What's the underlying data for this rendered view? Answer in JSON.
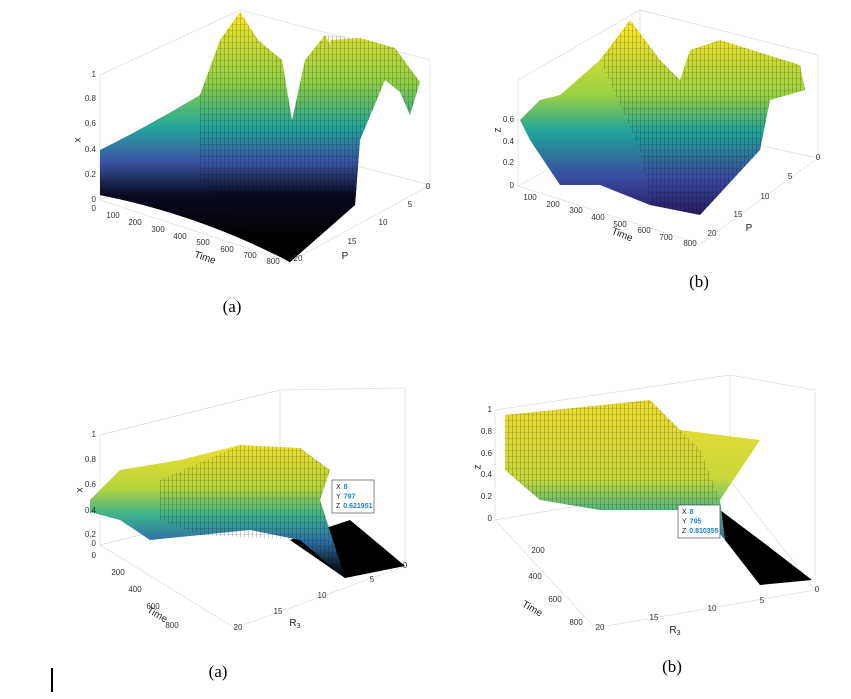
{
  "panels": [
    {
      "z_label": "x",
      "z_ticks": [
        "1",
        "0.8",
        "0.6",
        "0.4",
        "0.2",
        "0",
        "0"
      ],
      "x_label": "Time",
      "x_ticks": [
        "100",
        "200",
        "300",
        "400",
        "500",
        "600",
        "700",
        "800"
      ],
      "y_label": "P",
      "y_ticks": [
        "0",
        "5",
        "10",
        "15",
        "20"
      ],
      "caption": "(a)"
    },
    {
      "z_label": "z",
      "z_ticks": [
        "0.6",
        "0.4",
        "0.2",
        "0"
      ],
      "x_label": "Time",
      "x_ticks": [
        "100",
        "200",
        "300",
        "400",
        "500",
        "600",
        "700",
        "800"
      ],
      "y_label": "P",
      "y_ticks": [
        "0",
        "5",
        "10",
        "15",
        "20"
      ],
      "caption": "(b)"
    },
    {
      "z_label": "x",
      "z_ticks": [
        "1",
        "0.8",
        "0.6",
        "0.4",
        "0.2",
        "0",
        "0"
      ],
      "x_label": "Time",
      "x_ticks": [
        "200",
        "400",
        "600",
        "800"
      ],
      "y_label": "R",
      "y_label_sub": "3",
      "y_ticks": [
        "0",
        "5",
        "10",
        "15",
        "20"
      ],
      "datatip": [
        {
          "key": "X",
          "value": "8"
        },
        {
          "key": "Y",
          "value": "797"
        },
        {
          "key": "Z",
          "value": "0.621951"
        }
      ],
      "caption": "(a)"
    },
    {
      "z_label": "z",
      "z_ticks": [
        "1",
        "0.8",
        "0.6",
        "0.4",
        "0.2",
        "0"
      ],
      "x_label": "Time",
      "x_ticks": [
        "200",
        "400",
        "600",
        "800"
      ],
      "y_label": "R",
      "y_label_sub": "3",
      "y_ticks": [
        "0",
        "5",
        "10",
        "15",
        "20"
      ],
      "datatip": [
        {
          "key": "X",
          "value": "8"
        },
        {
          "key": "Y",
          "value": "795"
        },
        {
          "key": "Z",
          "value": "0.810355"
        }
      ],
      "caption": "(b)"
    }
  ]
}
